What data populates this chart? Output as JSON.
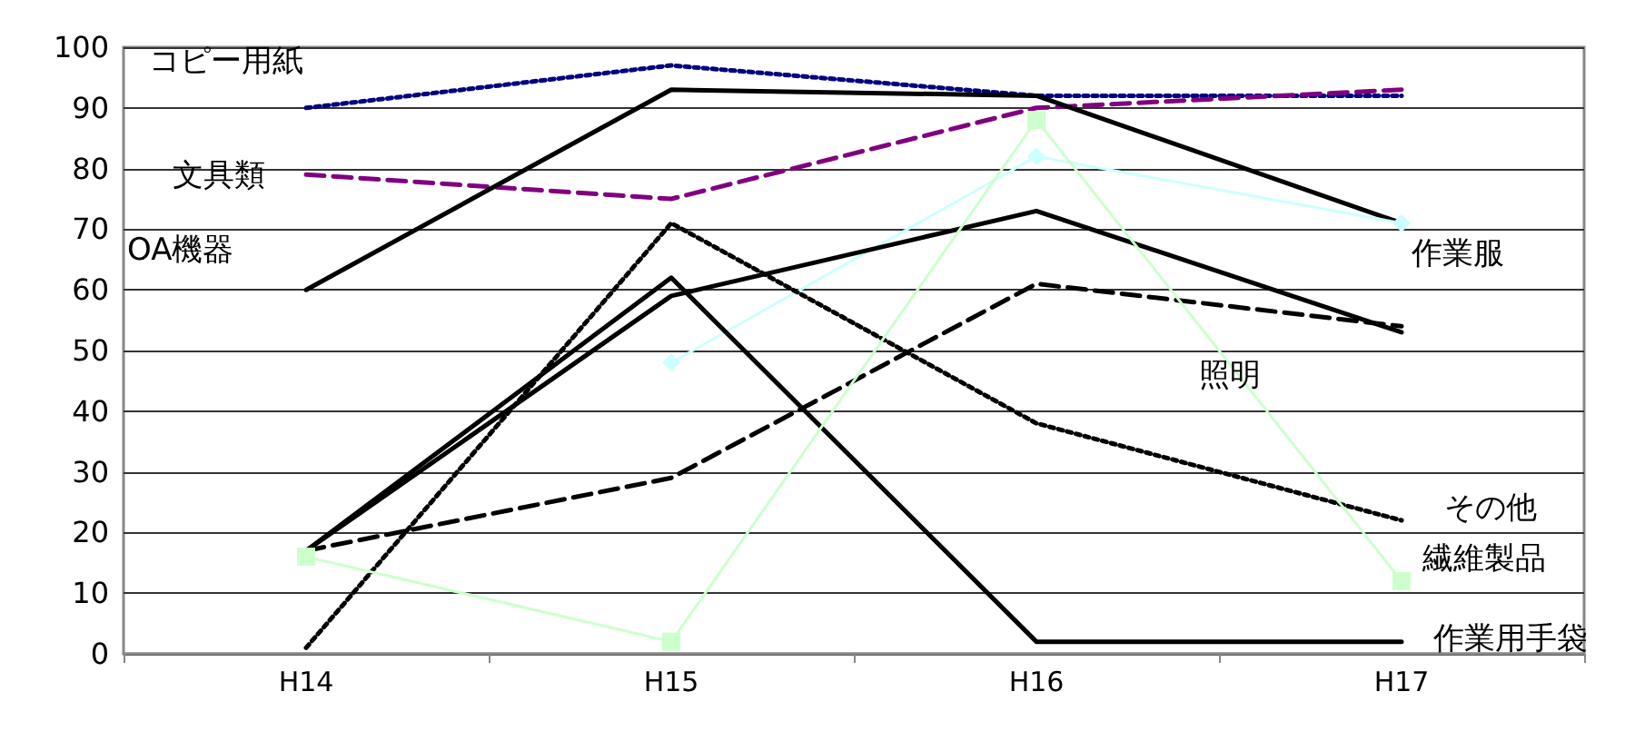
{
  "chart_data": {
    "type": "line",
    "categories": [
      "H14",
      "H15",
      "H16",
      "H17"
    ],
    "ylim": [
      0,
      100
    ],
    "yticks": [
      0,
      10,
      20,
      30,
      40,
      50,
      60,
      70,
      80,
      90,
      100
    ],
    "grid": "y",
    "marker": "none",
    "series": [
      {
        "color": "#000080",
        "values": [
          90,
          97,
          92,
          92
        ],
        "line_style": "dotted"
      },
      {
        "color": "#800080",
        "values": [
          79,
          75,
          90,
          93
        ],
        "line_style": "dashed"
      },
      {
        "color": "#000000",
        "values": [
          60,
          93,
          92,
          71
        ],
        "line_style": "solid"
      },
      {
        "color": "#ccffff",
        "values": [
          null,
          48,
          82,
          71
        ],
        "line_style": "solid",
        "marker": "diamond"
      },
      {
        "color": "#000000",
        "values": [
          17,
          59,
          73,
          53
        ],
        "line_style": "solid"
      },
      {
        "color": "#000000",
        "values": [
          17,
          29,
          61,
          54
        ],
        "line_style": "dashed"
      },
      {
        "color": "#000000",
        "values": [
          1,
          71,
          38,
          22
        ],
        "line_style": "dotted"
      },
      {
        "color": "#000000",
        "values": [
          17,
          62,
          2,
          2
        ],
        "line_style": "solid"
      },
      {
        "color": "#ccffcc",
        "values": [
          16,
          2,
          88,
          12
        ],
        "line_style": "solid",
        "marker": "square"
      }
    ],
    "annotations": [
      "コピー用紙",
      "文具類",
      "OA機器",
      "作業服",
      "照明",
      "その他",
      "繊維製品",
      "作業用手袋"
    ]
  }
}
